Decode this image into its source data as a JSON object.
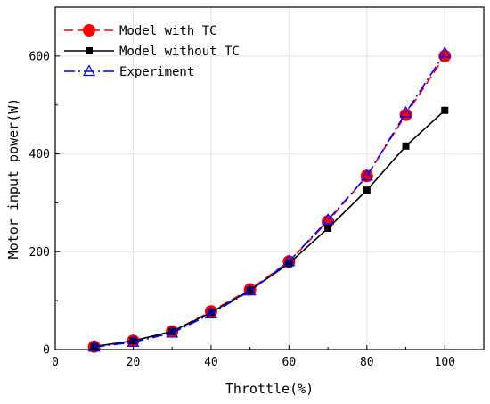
{
  "chart_data": {
    "type": "line",
    "title": "",
    "xlabel": "Throttle(%)",
    "ylabel": "Motor input power(W)",
    "xlim": [
      0,
      110
    ],
    "ylim": [
      0,
      700
    ],
    "xticks": [
      0,
      20,
      40,
      60,
      80,
      100
    ],
    "yticks": [
      0,
      200,
      400,
      600
    ],
    "grid": true,
    "legend_position": "top-left",
    "x": [
      10,
      20,
      30,
      40,
      50,
      60,
      70,
      80,
      90,
      100
    ],
    "series": [
      {
        "name": "Model with TC",
        "color": "#ff0000",
        "line_style": "dash",
        "marker": "filled-circle",
        "values": [
          6,
          18,
          37,
          78,
          123,
          180,
          262,
          355,
          480,
          600
        ]
      },
      {
        "name": "Model without TC",
        "color": "#000000",
        "line_style": "solid",
        "marker": "filled-square",
        "values": [
          6,
          18,
          37,
          76,
          121,
          176,
          248,
          326,
          416,
          489
        ]
      },
      {
        "name": "Experiment",
        "color": "#0000ff",
        "line_style": "dash-dot",
        "marker": "hollow-triangle",
        "values": [
          5,
          15,
          34,
          73,
          120,
          180,
          265,
          355,
          484,
          606
        ]
      }
    ]
  }
}
